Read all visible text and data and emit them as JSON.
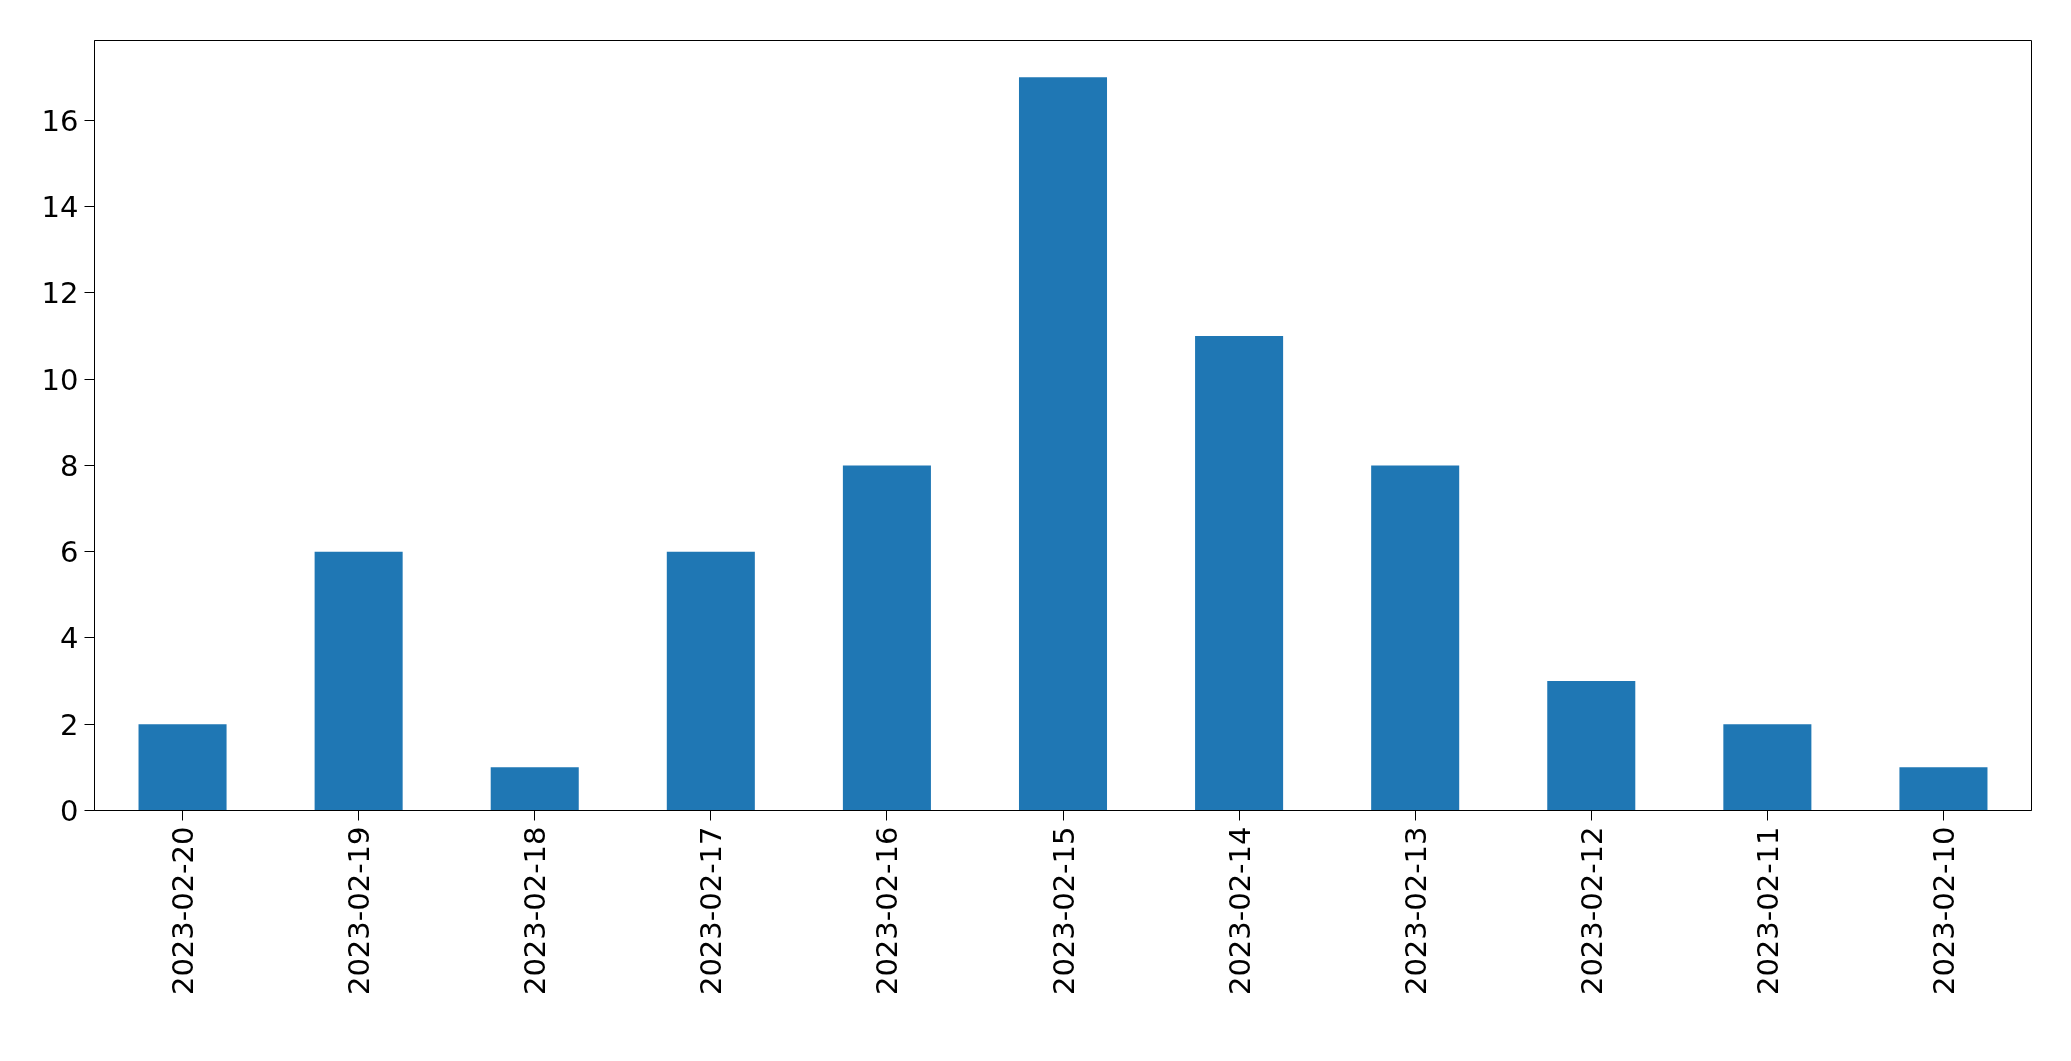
{
  "chart_data": {
    "type": "bar",
    "categories": [
      "2023-02-20",
      "2023-02-19",
      "2023-02-18",
      "2023-02-17",
      "2023-02-16",
      "2023-02-15",
      "2023-02-14",
      "2023-02-13",
      "2023-02-12",
      "2023-02-11",
      "2023-02-10"
    ],
    "values": [
      2,
      6,
      1,
      6,
      8,
      17,
      11,
      8,
      3,
      2,
      1
    ],
    "color": "#1f77b4",
    "ylim": [
      0,
      17.85
    ],
    "yticks": [
      0,
      2,
      4,
      6,
      8,
      10,
      12,
      14,
      16
    ]
  }
}
